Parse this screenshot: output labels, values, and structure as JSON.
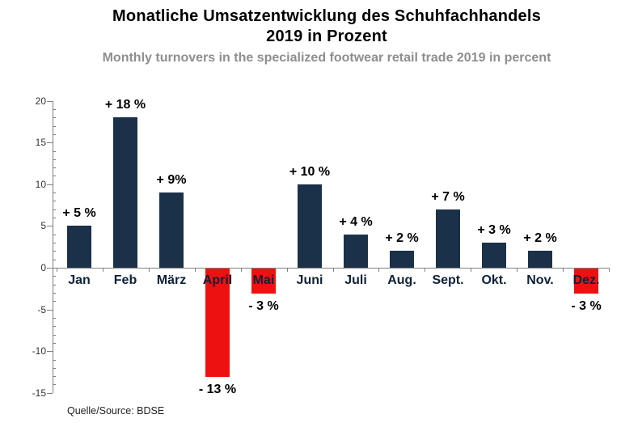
{
  "header": {
    "title_line1": "Monatliche Umsatzentwicklung des Schuhfachhandels",
    "title_line2": "2019 in Prozent",
    "subtitle": "Monthly turnovers in the specialized footwear retail trade 2019 in percent"
  },
  "chart_data": {
    "type": "bar",
    "title": "Monatliche Umsatzentwicklung des Schuhfachhandels 2019 in Prozent",
    "subtitle": "Monthly turnovers in the specialized footwear retail trade 2019 in percent",
    "categories": [
      "Jan",
      "Feb",
      "März",
      "April",
      "Mai",
      "Juni",
      "Juli",
      "Aug.",
      "Sept.",
      "Okt.",
      "Nov.",
      "Dez."
    ],
    "values": [
      5,
      18,
      9,
      -13,
      -3,
      10,
      4,
      2,
      7,
      3,
      2,
      -3
    ],
    "bar_labels": [
      "+ 5 %",
      "+ 18 %",
      "+ 9%",
      "- 13 %",
      "- 3 %",
      "+ 10 %",
      "+ 4 %",
      "+ 2 %",
      "+ 7 %",
      "+ 3 %",
      "+ 2 %",
      "- 3 %"
    ],
    "ylim": [
      -15,
      20
    ],
    "yticks": [
      20,
      15,
      10,
      5,
      0,
      -5,
      -10,
      -15
    ],
    "minor_tick_step": 1,
    "grid": false,
    "legend": "none",
    "xlabel": "",
    "ylabel": "",
    "bar_color_positive": "#1b3149",
    "bar_color_negative": "#ee1111"
  },
  "footer": {
    "source": "Quelle/Source: BDSE"
  },
  "theme": {
    "background": "#ffffff",
    "title_color": "#000000",
    "subtitle_color": "#8e8e8e",
    "axis_color": "#808080",
    "tick_label_color": "#333333",
    "value_label_color": "#000000",
    "month_label_color": "#0d2137"
  }
}
